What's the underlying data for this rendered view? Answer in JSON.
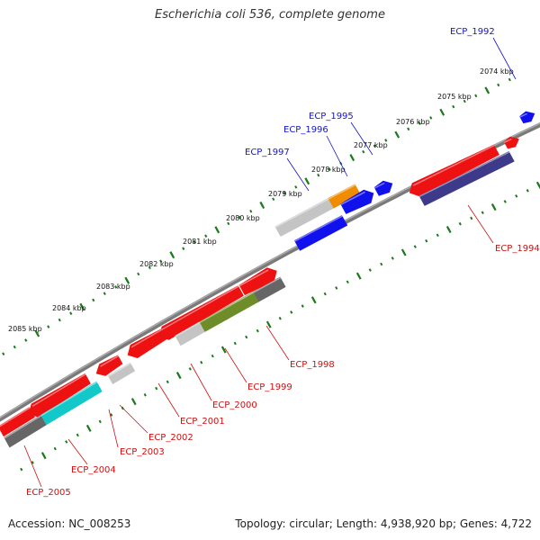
{
  "title": "Escherichia coli 536, complete genome",
  "footer": {
    "accession": "Accession: NC_008253",
    "summary": "Topology: circular; Length: 4,938,920 bp; Genes: 4,722"
  },
  "colors": {
    "backbone": "#7a7a7a",
    "tick": "#1c7a1c",
    "label_top": "#1515c8",
    "label_bottom": "#cc1111",
    "red": "#ee1111",
    "blue": "#1111ee",
    "orange": "#f08c00",
    "lightgray": "#c4c4c4",
    "darkgray": "#666666",
    "cyan": "#13c8c8",
    "olive": "#6e8c28",
    "navy": "#3e3a8a"
  },
  "ticks": [
    {
      "label": "2074 kbp"
    },
    {
      "label": "2075 kbp"
    },
    {
      "label": "2076 kbp"
    },
    {
      "label": "2077 kbp"
    },
    {
      "label": "2078 kbp"
    },
    {
      "label": "2079 kbp"
    },
    {
      "label": "2080 kbp"
    },
    {
      "label": "2081 kbp"
    },
    {
      "label": "2082 kbp"
    },
    {
      "label": "2083 kbp"
    },
    {
      "label": "2084 kbp"
    },
    {
      "label": "2085 kbp"
    }
  ],
  "gene_labels_top": [
    {
      "name": "ECP_1992"
    },
    {
      "name": "ECP_1995"
    },
    {
      "name": "ECP_1996"
    },
    {
      "name": "ECP_1997"
    }
  ],
  "gene_labels_bottom": [
    {
      "name": "ECP_1994"
    },
    {
      "name": "ECP_1998"
    },
    {
      "name": "ECP_1999"
    },
    {
      "name": "ECP_2000"
    },
    {
      "name": "ECP_2001"
    },
    {
      "name": "ECP_2002"
    },
    {
      "name": "ECP_2003"
    },
    {
      "name": "ECP_2004"
    },
    {
      "name": "ECP_2005"
    }
  ]
}
